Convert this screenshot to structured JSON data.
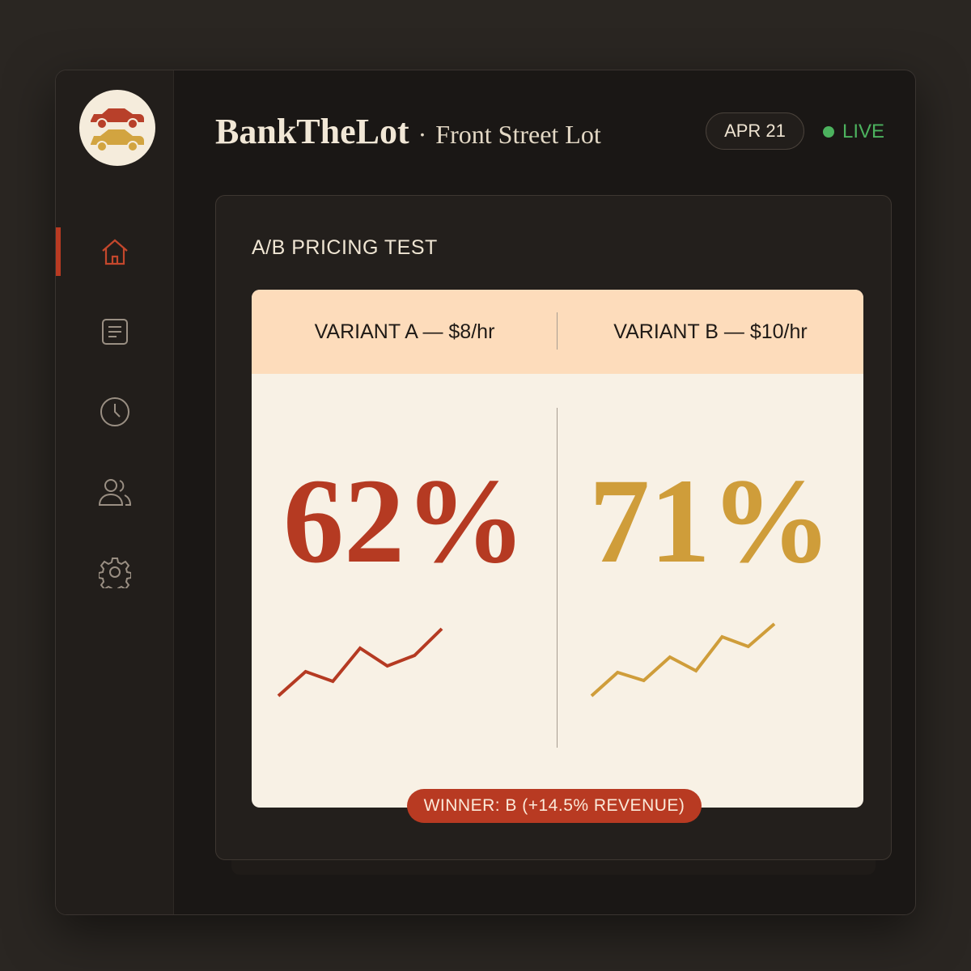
{
  "header": {
    "brand": "BankTheLot",
    "separator": "·",
    "lot": "Front Street Lot",
    "date": "APR 21",
    "status": "LIVE"
  },
  "sidebar": {
    "items": [
      {
        "name": "home",
        "active": true
      },
      {
        "name": "reports"
      },
      {
        "name": "history"
      },
      {
        "name": "users"
      },
      {
        "name": "settings"
      }
    ]
  },
  "card": {
    "title": "A/B PRICING TEST",
    "variants": [
      {
        "label": "VARIANT A — $8/hr",
        "value": "62%",
        "color": "#b53a22",
        "trend": [
          0,
          30,
          18,
          59,
          37,
          50,
          83
        ]
      },
      {
        "label": "VARIANT B — $10/hr",
        "value": "71%",
        "color": "#cf9d3a",
        "trend": [
          0,
          29,
          19,
          48,
          31,
          73,
          61,
          89
        ]
      }
    ],
    "winner": "WINNER: B (+14.5% REVENUE)"
  },
  "colors": {
    "accent": "#b83a22",
    "gold": "#cf9d3a",
    "live": "#4cb25e"
  }
}
